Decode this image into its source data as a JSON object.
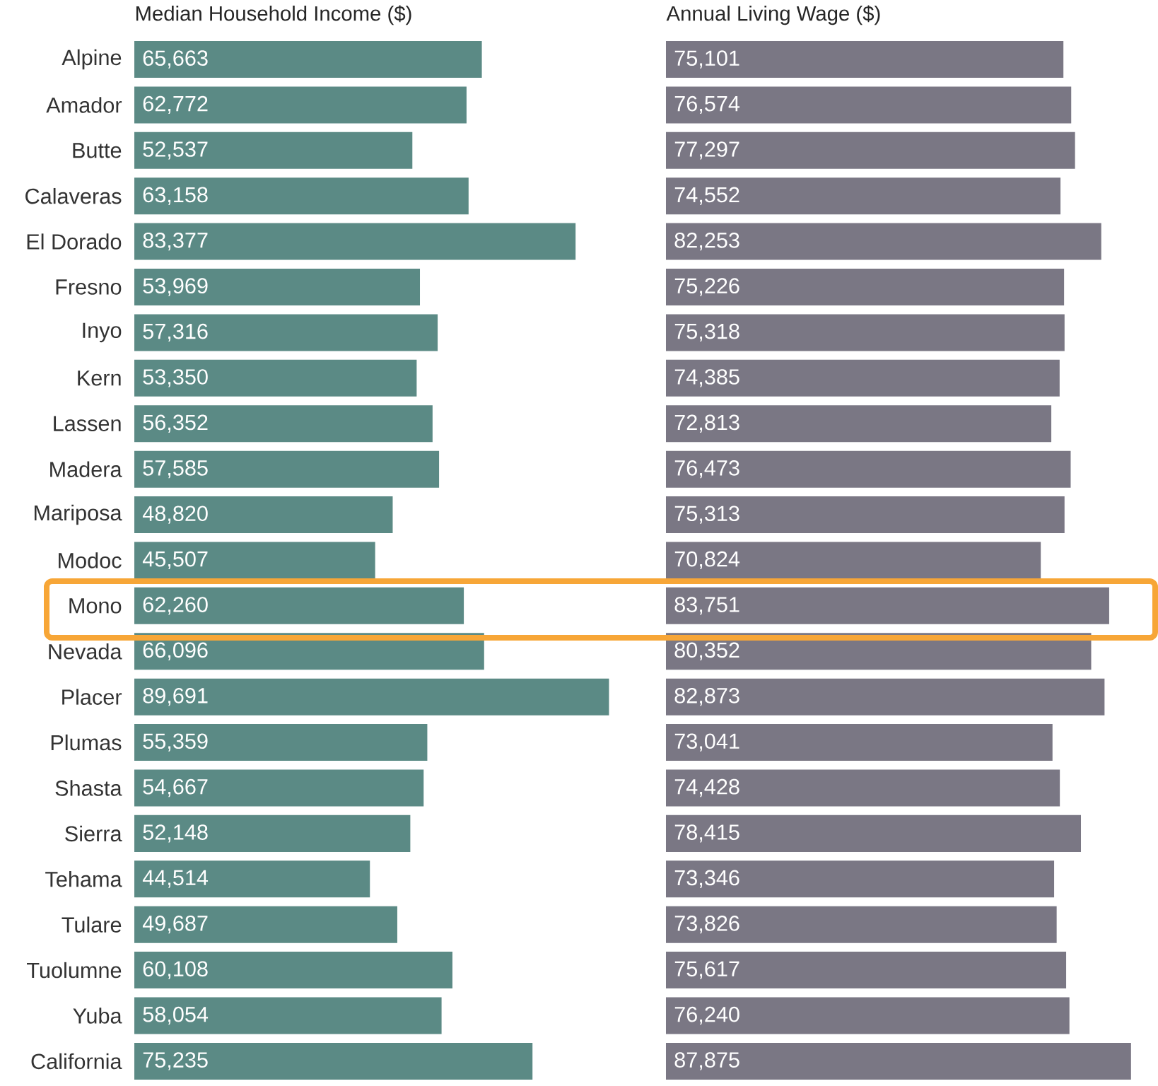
{
  "chart_data": [
    {
      "type": "bar",
      "orientation": "horizontal",
      "title": "Median Household Income ($)",
      "categories": [
        "Alpine",
        "Amador",
        "Butte",
        "Calaveras",
        "El Dorado",
        "Fresno",
        "Inyo",
        "Kern",
        "Lassen",
        "Madera",
        "Mariposa",
        "Modoc",
        "Mono",
        "Nevada",
        "Placer",
        "Plumas",
        "Shasta",
        "Sierra",
        "Tehama",
        "Tulare",
        "Tuolumne",
        "Yuba",
        "California"
      ],
      "values": [
        65663,
        62772,
        52537,
        63158,
        83377,
        53969,
        57316,
        53350,
        56352,
        57585,
        48820,
        45507,
        62260,
        66096,
        89691,
        55359,
        54667,
        52148,
        44514,
        49687,
        60108,
        58054,
        75235
      ],
      "value_labels": [
        "65,663",
        "62,772",
        "52,537",
        "63,158",
        "83,377",
        "53,969",
        "57,316",
        "53,350",
        "56,352",
        "57,585",
        "48,820",
        "45,507",
        "62,260",
        "66,096",
        "89,691",
        "55,359",
        "54,667",
        "52,148",
        "44,514",
        "49,687",
        "60,108",
        "58,054",
        "75,235"
      ],
      "color": "#5b8a85",
      "tick_labels": "y"
    },
    {
      "type": "bar",
      "orientation": "horizontal",
      "title": "Annual Living Wage ($)",
      "categories": [
        null,
        null,
        null,
        null,
        null,
        null,
        null,
        null,
        null,
        null,
        null,
        null,
        null,
        null,
        null,
        null,
        null,
        null,
        null,
        null,
        null,
        null,
        null
      ],
      "values": [
        75101,
        76574,
        77297,
        74552,
        82253,
        75226,
        75318,
        74385,
        72813,
        76473,
        75313,
        70824,
        83751,
        80352,
        82873,
        73041,
        74428,
        78415,
        73346,
        73826,
        75617,
        76240,
        87875
      ],
      "value_labels": [
        "75,101",
        "76,574",
        "77,297",
        "74,552",
        "82,253",
        "75,226",
        "75,318",
        "74,385",
        "72,813",
        "76,473",
        "75,313",
        "70,824",
        "83,751",
        "80,352",
        "82,873",
        "73,041",
        "74,428",
        "78,415",
        "73,346",
        "73,826",
        "75,617",
        "76,240",
        "87,875"
      ],
      "color": "#7a7784",
      "tick_labels": false
    }
  ]
}
